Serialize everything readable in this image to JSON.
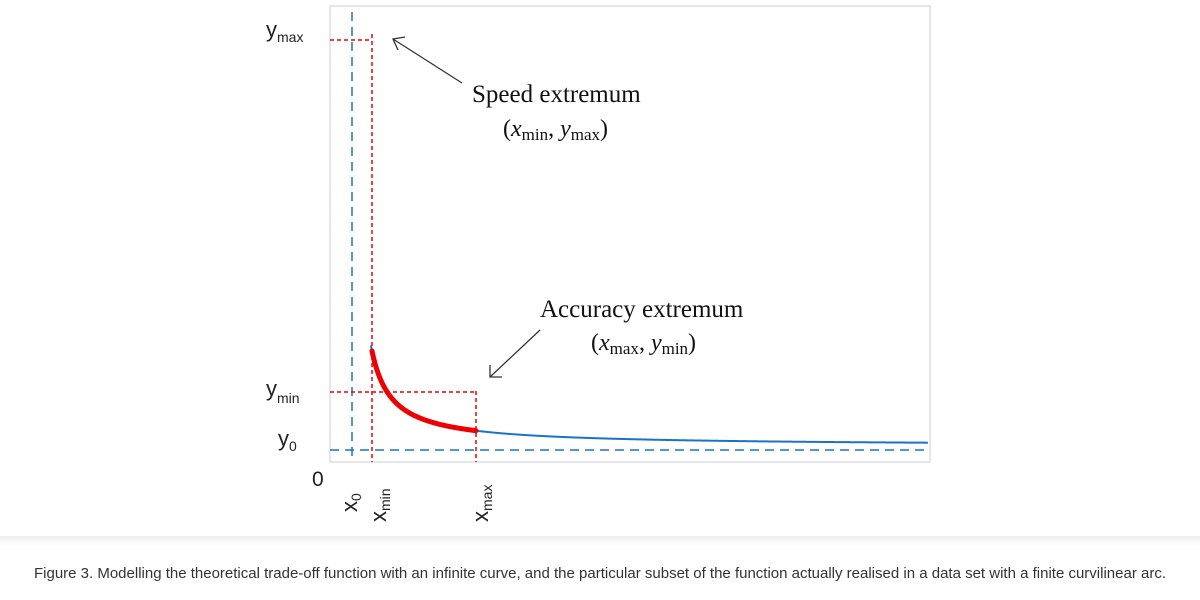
{
  "diagram": {
    "y_labels": {
      "ymax_main": "y",
      "ymax_sub": "max",
      "ymin_main": "y",
      "ymin_sub": "min",
      "y0_main": "y",
      "y0_sub": "0"
    },
    "x_labels": {
      "origin": "0",
      "x0_main": "x",
      "x0_sub": "0",
      "xmin_main": "x",
      "xmin_sub": "min",
      "xmax_main": "x",
      "xmax_sub": "max"
    },
    "annotations": {
      "speed_title": "Speed extremum",
      "speed_open": "(",
      "speed_x": "x",
      "speed_x_sub": "min",
      "speed_sep": ", ",
      "speed_y": "y",
      "speed_y_sub": "max",
      "speed_close": ")",
      "accuracy_title": "Accuracy extremum",
      "accuracy_open": "(",
      "accuracy_x": "x",
      "accuracy_x_sub": "max",
      "accuracy_sep": ", ",
      "accuracy_y": "y",
      "accuracy_y_sub": "min",
      "accuracy_close": ")"
    },
    "colors": {
      "curve": "#1a73c8",
      "arc": "#ee0000",
      "frame": "#cccccc",
      "reference": "#1a73c8",
      "guide": "#ee0000"
    }
  },
  "caption": "Figure 3. Modelling the theoretical trade-off function with an infinite curve, and the particular subset of the function actually realised in a data set with a finite curvilinear arc."
}
